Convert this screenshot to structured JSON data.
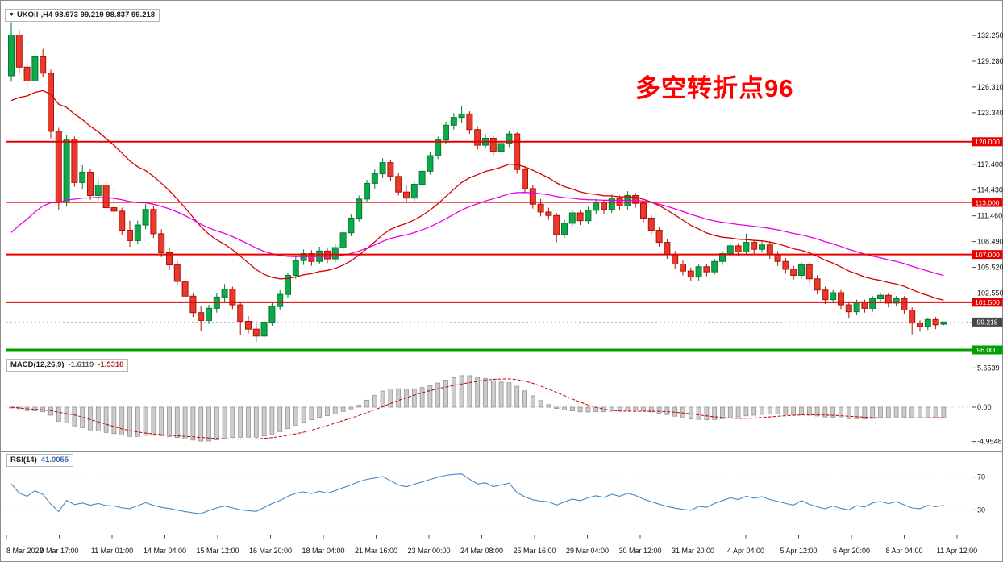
{
  "window": {
    "background": "#FFFFFF",
    "frame_color": "#8C8C8C"
  },
  "symbol_info": {
    "dropdown_icon": "▼",
    "text": "UKOil-,H4 98.973 99.219 98.837 99.218"
  },
  "annotation": {
    "text": "多空转折点96",
    "color": "#FF0000"
  },
  "chart_data": {
    "type": "candlestick",
    "symbol": "UKOil-",
    "timeframe": "H4",
    "ohlc_info": {
      "open": "98.973",
      "high": "99.219",
      "low": "98.837",
      "close": "99.218"
    },
    "y_axis_ticks": [
      "132.250",
      "129.280",
      "126.310",
      "123.340",
      "120.370",
      "117.400",
      "114.430",
      "111.460",
      "108.490",
      "105.520",
      "102.550",
      "99.580",
      "96.610"
    ],
    "price_range": [
      95.6,
      135.4
    ],
    "time_labels": [
      "8 Mar 2022",
      "9 Mar 17:00",
      "11 Mar 01:00",
      "14 Mar 04:00",
      "15 Mar 12:00",
      "16 Mar 20:00",
      "18 Mar 04:00",
      "21 Mar 16:00",
      "23 Mar 00:00",
      "24 Mar 08:00",
      "25 Mar 16:00",
      "29 Mar 04:00",
      "30 Mar 12:00",
      "31 Mar 20:00",
      "4 Apr 04:00",
      "5 Apr 12:00",
      "6 Apr 20:00",
      "8 Apr 04:00",
      "11 Apr 12:00"
    ],
    "horizontal_lines": [
      {
        "price": 120.0,
        "label": "120.000",
        "color": "#E60000",
        "width": 2
      },
      {
        "price": 113.0,
        "label": "113.000",
        "color": "#E60000",
        "width": 1
      },
      {
        "price": 107.0,
        "label": "107.000",
        "color": "#E60000",
        "width": 2
      },
      {
        "price": 101.5,
        "label": "101.500",
        "color": "#E60000",
        "width": 2
      },
      {
        "price": 96.0,
        "label": "96.000",
        "color": "#00A000",
        "width": 3
      }
    ],
    "current_price": {
      "value": 99.218,
      "label": "99.218",
      "box_color": "#484848"
    },
    "candle_colors": {
      "up_fill": "#0EA94B",
      "up_stroke": "#067A33",
      "down_fill": "#E8392C",
      "down_stroke": "#A91409"
    },
    "moving_averages": [
      {
        "name": "ma-fast-line",
        "period": 21,
        "seed": 124.0,
        "color": "#D40000"
      },
      {
        "name": "ma-slow-line",
        "period": 45,
        "seed": 108.5,
        "color": "#E800E8"
      }
    ],
    "indicators": {
      "macd": {
        "label": "MACD(12,26,9)",
        "main_value": "-1.6119",
        "signal_value": "-1.5318",
        "params": [
          12,
          26,
          9
        ],
        "axis_ticks": [
          "5.6539",
          "0.00",
          "-4.9548"
        ],
        "axis_range": [
          -4.9548,
          5.6539
        ],
        "histogram_fill": "#CCCCCC",
        "histogram_stroke": "#8E8E8E",
        "signal_color": "#C00000"
      },
      "rsi": {
        "label": "RSI(14)",
        "value": "41.0055",
        "period": 14,
        "levels": [
          {
            "value": 70,
            "label": "70"
          },
          {
            "value": 30,
            "label": "30"
          }
        ],
        "axis_range": [
          0,
          100
        ],
        "line_color": "#4987C4",
        "level_color": "#C8C8C8"
      }
    },
    "candles": [
      [
        127.6,
        133.8,
        126.9,
        132.3
      ],
      [
        132.3,
        132.9,
        127.8,
        128.6
      ],
      [
        128.6,
        129.3,
        126.2,
        127.0
      ],
      [
        127.0,
        130.6,
        126.8,
        129.8
      ],
      [
        129.8,
        130.7,
        127.4,
        127.9
      ],
      [
        127.9,
        128.3,
        120.4,
        121.2
      ],
      [
        121.2,
        121.6,
        112.1,
        113.0
      ],
      [
        113.0,
        120.8,
        112.5,
        120.3
      ],
      [
        120.3,
        120.6,
        114.8,
        115.3
      ],
      [
        115.3,
        117.3,
        114.5,
        116.5
      ],
      [
        116.5,
        116.9,
        113.3,
        113.8
      ],
      [
        113.8,
        115.7,
        113.2,
        115.0
      ],
      [
        115.0,
        115.5,
        111.9,
        112.4
      ],
      [
        112.4,
        114.6,
        111.6,
        112.0
      ],
      [
        112.0,
        112.4,
        109.2,
        109.8
      ],
      [
        109.8,
        110.9,
        107.9,
        108.6
      ],
      [
        108.6,
        110.9,
        108.2,
        110.4
      ],
      [
        110.4,
        112.8,
        109.9,
        112.2
      ],
      [
        112.2,
        112.6,
        108.9,
        109.4
      ],
      [
        109.4,
        109.9,
        106.7,
        107.2
      ],
      [
        107.2,
        107.8,
        105.2,
        105.8
      ],
      [
        105.8,
        106.3,
        103.4,
        103.9
      ],
      [
        103.9,
        104.8,
        101.7,
        102.2
      ],
      [
        102.2,
        102.6,
        99.8,
        100.3
      ],
      [
        100.3,
        101.1,
        98.2,
        99.4
      ],
      [
        99.4,
        101.2,
        99.0,
        100.8
      ],
      [
        100.8,
        102.6,
        100.3,
        102.1
      ],
      [
        102.1,
        103.6,
        101.5,
        103.0
      ],
      [
        103.0,
        103.3,
        100.7,
        101.2
      ],
      [
        101.2,
        101.6,
        97.7,
        99.3
      ],
      [
        99.3,
        99.9,
        97.9,
        98.4
      ],
      [
        98.4,
        99.0,
        96.9,
        97.6
      ],
      [
        97.6,
        99.6,
        97.2,
        99.2
      ],
      [
        99.2,
        101.4,
        98.8,
        101.0
      ],
      [
        101.0,
        102.9,
        100.6,
        102.4
      ],
      [
        102.4,
        104.9,
        102.0,
        104.6
      ],
      [
        104.6,
        106.8,
        104.2,
        106.3
      ],
      [
        106.3,
        107.6,
        105.8,
        107.1
      ],
      [
        107.1,
        107.5,
        105.7,
        106.2
      ],
      [
        106.2,
        107.9,
        105.9,
        107.4
      ],
      [
        107.4,
        107.8,
        106.0,
        106.5
      ],
      [
        106.5,
        108.2,
        106.1,
        107.8
      ],
      [
        107.8,
        109.9,
        107.4,
        109.5
      ],
      [
        109.5,
        111.6,
        109.1,
        111.2
      ],
      [
        111.2,
        113.8,
        110.8,
        113.4
      ],
      [
        113.4,
        115.6,
        113.0,
        115.2
      ],
      [
        115.2,
        116.8,
        114.6,
        116.3
      ],
      [
        116.3,
        118.1,
        115.8,
        117.6
      ],
      [
        117.6,
        117.9,
        115.5,
        116.0
      ],
      [
        116.0,
        116.4,
        113.8,
        114.2
      ],
      [
        114.2,
        114.9,
        113.0,
        113.5
      ],
      [
        113.5,
        115.5,
        113.1,
        115.1
      ],
      [
        115.1,
        117.0,
        114.7,
        116.6
      ],
      [
        116.6,
        118.8,
        116.2,
        118.4
      ],
      [
        118.4,
        120.6,
        118.0,
        120.2
      ],
      [
        120.2,
        122.3,
        119.8,
        121.9
      ],
      [
        121.9,
        123.3,
        121.4,
        122.8
      ],
      [
        122.8,
        124.1,
        122.2,
        123.2
      ],
      [
        123.2,
        123.5,
        120.9,
        121.4
      ],
      [
        121.4,
        121.8,
        119.1,
        119.6
      ],
      [
        119.6,
        120.9,
        119.2,
        120.4
      ],
      [
        120.4,
        120.7,
        118.4,
        118.9
      ],
      [
        118.9,
        120.2,
        118.5,
        119.8
      ],
      [
        119.8,
        121.3,
        119.4,
        120.9
      ],
      [
        120.9,
        121.1,
        116.3,
        116.8
      ],
      [
        116.8,
        117.2,
        114.1,
        114.6
      ],
      [
        114.6,
        115.0,
        112.3,
        112.8
      ],
      [
        112.8,
        113.4,
        111.4,
        111.9
      ],
      [
        111.9,
        112.4,
        111.0,
        111.5
      ],
      [
        111.5,
        111.8,
        108.4,
        109.3
      ],
      [
        109.3,
        111.0,
        108.9,
        110.6
      ],
      [
        110.6,
        112.2,
        110.2,
        111.8
      ],
      [
        111.8,
        112.1,
        110.4,
        110.9
      ],
      [
        110.9,
        112.5,
        110.5,
        112.1
      ],
      [
        112.1,
        113.4,
        111.7,
        113.0
      ],
      [
        113.0,
        113.3,
        111.7,
        112.2
      ],
      [
        112.2,
        113.9,
        111.8,
        113.5
      ],
      [
        113.5,
        113.8,
        112.1,
        112.6
      ],
      [
        112.6,
        114.3,
        112.2,
        113.8
      ],
      [
        113.8,
        114.1,
        112.4,
        112.9
      ],
      [
        112.9,
        113.2,
        110.7,
        111.2
      ],
      [
        111.2,
        111.6,
        109.3,
        109.8
      ],
      [
        109.8,
        110.2,
        107.9,
        108.4
      ],
      [
        108.4,
        108.8,
        106.5,
        107.0
      ],
      [
        107.0,
        107.4,
        105.4,
        105.9
      ],
      [
        105.9,
        106.3,
        104.6,
        105.1
      ],
      [
        105.1,
        105.5,
        103.9,
        104.4
      ],
      [
        104.4,
        105.9,
        104.0,
        105.6
      ],
      [
        105.6,
        105.9,
        104.5,
        105.0
      ],
      [
        105.0,
        106.5,
        104.7,
        106.2
      ],
      [
        106.2,
        107.4,
        105.8,
        107.1
      ],
      [
        107.1,
        108.3,
        106.7,
        108.0
      ],
      [
        108.0,
        108.3,
        106.8,
        107.3
      ],
      [
        107.3,
        109.4,
        107.0,
        108.4
      ],
      [
        108.4,
        108.7,
        107.1,
        107.6
      ],
      [
        107.6,
        108.5,
        107.2,
        108.1
      ],
      [
        108.1,
        108.4,
        106.5,
        107.0
      ],
      [
        107.0,
        107.4,
        105.7,
        106.2
      ],
      [
        106.2,
        106.6,
        104.8,
        105.3
      ],
      [
        105.3,
        105.7,
        104.1,
        104.6
      ],
      [
        104.6,
        106.1,
        104.2,
        105.8
      ],
      [
        105.8,
        106.1,
        103.7,
        104.2
      ],
      [
        104.2,
        104.6,
        102.4,
        102.9
      ],
      [
        102.9,
        103.3,
        101.3,
        101.8
      ],
      [
        101.8,
        102.9,
        101.4,
        102.6
      ],
      [
        102.6,
        102.9,
        100.7,
        101.2
      ],
      [
        101.2,
        101.5,
        99.6,
        100.4
      ],
      [
        100.4,
        101.8,
        100.0,
        101.5
      ],
      [
        101.5,
        101.8,
        100.3,
        100.8
      ],
      [
        100.8,
        102.2,
        100.4,
        101.9
      ],
      [
        101.9,
        102.6,
        101.4,
        102.3
      ],
      [
        102.3,
        102.6,
        100.9,
        101.4
      ],
      [
        101.4,
        102.2,
        101.0,
        101.9
      ],
      [
        101.9,
        102.2,
        100.1,
        100.6
      ],
      [
        100.6,
        100.9,
        97.8,
        99.1
      ],
      [
        99.1,
        99.4,
        98.1,
        98.7
      ],
      [
        98.7,
        99.7,
        98.3,
        99.5
      ],
      [
        99.5,
        99.8,
        98.4,
        98.9
      ],
      [
        98.97,
        99.22,
        98.84,
        99.22
      ]
    ]
  }
}
